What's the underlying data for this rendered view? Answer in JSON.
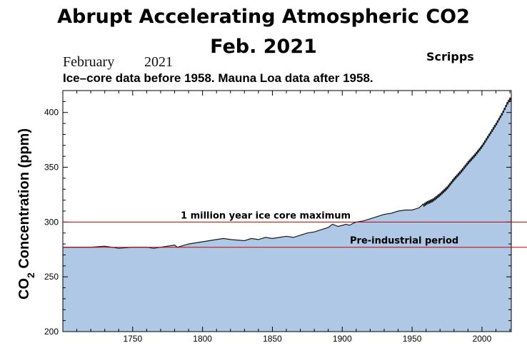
{
  "header": {
    "title_line1": "Abrupt Accelerating Atmospheric CO2",
    "title_line2": "Feb. 2021",
    "source": "Scripps",
    "date_month": "February",
    "date_year": "2021",
    "subtitle": "Ice–core data before 1958. Mauna Loa data after 1958."
  },
  "colors": {
    "fill": "#aec8e6",
    "line": "#1a1a1a",
    "reference_lines": "#c00000"
  },
  "chart_data": {
    "type": "area",
    "ylabel_main": "CO",
    "ylabel_sub": "2",
    "ylabel_rest": " Concentration (ppm)",
    "xlim": [
      1700,
      2021
    ],
    "ylim": [
      200,
      420
    ],
    "xticks": [
      1750,
      1800,
      1850,
      1900,
      1950,
      2000
    ],
    "yticks": [
      200,
      250,
      300,
      350,
      400
    ],
    "series": [
      {
        "x": [
          1700,
          1710,
          1720,
          1730,
          1740,
          1750,
          1760,
          1765,
          1770,
          1780,
          1782,
          1790,
          1800,
          1810,
          1815,
          1820,
          1830,
          1835,
          1840,
          1845,
          1850,
          1855,
          1860,
          1865,
          1870,
          1875,
          1880,
          1885,
          1890,
          1893,
          1897,
          1900,
          1903,
          1905,
          1908,
          1910,
          1915,
          1920,
          1925,
          1930,
          1935,
          1940,
          1945,
          1950,
          1955,
          1958,
          1960,
          1965,
          1970,
          1975,
          1980,
          1985,
          1990,
          1995,
          2000,
          2005,
          2010,
          2015,
          2018,
          2021
        ],
        "y": [
          277,
          277,
          277,
          278,
          276,
          277,
          277,
          276,
          277,
          279,
          277,
          280,
          282,
          284,
          285,
          284,
          283,
          285,
          284,
          286,
          285,
          286,
          287,
          286,
          288,
          290,
          291,
          293,
          295,
          298,
          296,
          297,
          298,
          297,
          299,
          300,
          301,
          303,
          305,
          307,
          308,
          310,
          311,
          311,
          313,
          315,
          317,
          320,
          325,
          331,
          339,
          346,
          354,
          361,
          369,
          379,
          389,
          400,
          408,
          414
        ]
      }
    ],
    "annotations": [
      {
        "label": "1 million year ice core maximum",
        "y": 300
      },
      {
        "label": "Pre-industrial period",
        "y": 277
      }
    ]
  }
}
